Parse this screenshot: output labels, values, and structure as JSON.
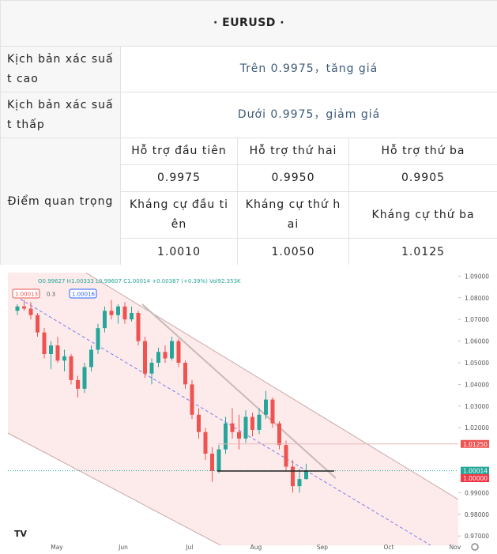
{
  "title": "· EURUSD ·",
  "scenarios": [
    {
      "label": "Kịch bản xác suất cao",
      "text": "Trên 0.9975，tăng giá"
    },
    {
      "label": "Kịch bản xác suất thấp",
      "text": "Dưới 0.9975，giảm giá"
    }
  ],
  "key_levels": {
    "label": "Điểm quan trọng",
    "support_headers": [
      "Hỗ trợ đầu tiên",
      "Hỗ trợ thứ hai",
      "Hỗ trợ thứ ba"
    ],
    "support_values": [
      "0.9975",
      "0.9950",
      "0.9905"
    ],
    "resistance_headers": [
      "Kháng cự đầu tiên",
      "Kháng cự thứ hai",
      "Kháng cự thứ ba"
    ],
    "resistance_values": [
      "1.0010",
      "1.0050",
      "1.0125"
    ]
  },
  "chart": {
    "type": "candlestick",
    "header": "O0.99627 H1.00333 L0.99607 C1.00014 +0.00387 (+0.39%) Vol92.353K",
    "badges": [
      "1.00013",
      "0.3",
      "1.00016"
    ],
    "months": [
      "May",
      "Jun",
      "Jul",
      "Aug",
      "Sep",
      "Oct",
      "Nov"
    ],
    "ylim": [
      0.965,
      1.095
    ],
    "yticks": [
      {
        "value": 1.09,
        "label": "1.09000"
      },
      {
        "value": 1.08,
        "label": "1.08000"
      },
      {
        "value": 1.07,
        "label": "1.07000"
      },
      {
        "value": 1.06,
        "label": "1.06000"
      },
      {
        "value": 1.05,
        "label": "1.05000"
      },
      {
        "value": 1.04,
        "label": "1.04000"
      },
      {
        "value": 1.03,
        "label": "1.03000"
      },
      {
        "value": 1.02,
        "label": "1.02000"
      },
      {
        "value": 0.99,
        "label": "0.99000"
      },
      {
        "value": 0.98,
        "label": "0.98000"
      },
      {
        "value": 0.97,
        "label": "0.97000"
      }
    ],
    "price_tags": [
      {
        "value": 1.0125,
        "label": "1.01250",
        "color": "#ef5350"
      },
      {
        "value": 1.00014,
        "label": "1.00014",
        "color": "#26a69a"
      },
      {
        "value": 1.0,
        "label": "1.00000",
        "color": "#f23645"
      }
    ],
    "up_color": "#26a69a",
    "down_color": "#ef5350",
    "candles": [
      [
        1.074,
        1.077,
        1.072,
        1.076
      ],
      [
        1.076,
        1.079,
        1.074,
        1.075
      ],
      [
        1.075,
        1.078,
        1.07,
        1.072
      ],
      [
        1.072,
        1.073,
        1.062,
        1.064
      ],
      [
        1.064,
        1.066,
        1.052,
        1.054
      ],
      [
        1.054,
        1.06,
        1.047,
        1.058
      ],
      [
        1.058,
        1.062,
        1.05,
        1.051
      ],
      [
        1.051,
        1.056,
        1.046,
        1.053
      ],
      [
        1.053,
        1.054,
        1.04,
        1.042
      ],
      [
        1.042,
        1.044,
        1.034,
        1.038
      ],
      [
        1.038,
        1.05,
        1.036,
        1.048
      ],
      [
        1.048,
        1.058,
        1.046,
        1.056
      ],
      [
        1.056,
        1.068,
        1.054,
        1.066
      ],
      [
        1.066,
        1.076,
        1.064,
        1.074
      ],
      [
        1.074,
        1.079,
        1.07,
        1.072
      ],
      [
        1.072,
        1.077,
        1.068,
        1.076
      ],
      [
        1.076,
        1.078,
        1.068,
        1.07
      ],
      [
        1.07,
        1.076,
        1.069,
        1.073
      ],
      [
        1.073,
        1.074,
        1.058,
        1.06
      ],
      [
        1.06,
        1.062,
        1.043,
        1.045
      ],
      [
        1.045,
        1.052,
        1.04,
        1.05
      ],
      [
        1.05,
        1.057,
        1.048,
        1.055
      ],
      [
        1.055,
        1.058,
        1.05,
        1.052
      ],
      [
        1.052,
        1.062,
        1.051,
        1.06
      ],
      [
        1.06,
        1.061,
        1.048,
        1.05
      ],
      [
        1.05,
        1.051,
        1.038,
        1.04
      ],
      [
        1.04,
        1.042,
        1.024,
        1.026
      ],
      [
        1.026,
        1.029,
        1.015,
        1.018
      ],
      [
        1.018,
        1.02,
        1.005,
        1.008
      ],
      [
        1.008,
        1.011,
        0.995,
        1.0
      ],
      [
        1.0,
        1.012,
        0.999,
        1.01
      ],
      [
        1.01,
        1.025,
        1.008,
        1.022
      ],
      [
        1.022,
        1.029,
        1.015,
        1.018
      ],
      [
        1.018,
        1.026,
        1.01,
        1.015
      ],
      [
        1.015,
        1.028,
        1.013,
        1.025
      ],
      [
        1.025,
        1.027,
        1.016,
        1.019
      ],
      [
        1.019,
        1.029,
        1.017,
        1.026
      ],
      [
        1.026,
        1.037,
        1.024,
        1.033
      ],
      [
        1.033,
        1.034,
        1.02,
        1.022
      ],
      [
        1.022,
        1.023,
        1.01,
        1.012
      ],
      [
        1.012,
        1.014,
        1.0,
        1.002
      ],
      [
        1.002,
        1.005,
        0.99,
        0.993
      ],
      [
        0.993,
        1.001,
        0.99,
        0.9963
      ],
      [
        0.99627,
        1.00333,
        0.99607,
        1.00014
      ]
    ]
  }
}
